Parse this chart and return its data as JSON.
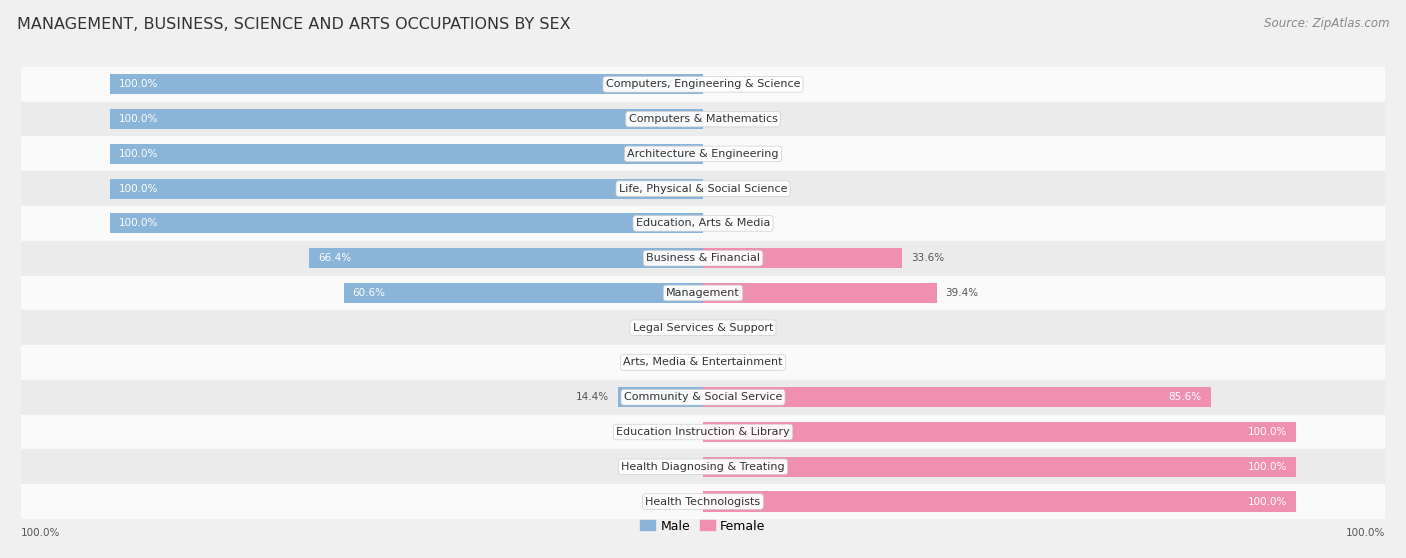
{
  "title": "Management, Business, Science and Arts Occupations by Sex",
  "source": "Source: ZipAtlas.com",
  "categories": [
    "Computers, Engineering & Science",
    "Computers & Mathematics",
    "Architecture & Engineering",
    "Life, Physical & Social Science",
    "Education, Arts & Media",
    "Business & Financial",
    "Management",
    "Legal Services & Support",
    "Arts, Media & Entertainment",
    "Community & Social Service",
    "Education Instruction & Library",
    "Health Diagnosing & Treating",
    "Health Technologists"
  ],
  "male": [
    100.0,
    100.0,
    100.0,
    100.0,
    100.0,
    66.4,
    60.6,
    0.0,
    0.0,
    14.4,
    0.0,
    0.0,
    0.0
  ],
  "female": [
    0.0,
    0.0,
    0.0,
    0.0,
    0.0,
    33.6,
    39.4,
    0.0,
    0.0,
    85.6,
    100.0,
    100.0,
    100.0
  ],
  "male_color": "#8ab4d8",
  "female_color": "#f090b0",
  "bar_height": 0.58,
  "background_color": "#f0f0f0",
  "row_colors": [
    "#fafafa",
    "#ebebeb"
  ],
  "title_fontsize": 11.5,
  "source_fontsize": 8.5,
  "label_fontsize": 8,
  "bar_label_fontsize": 7.5,
  "legend_fontsize": 9
}
